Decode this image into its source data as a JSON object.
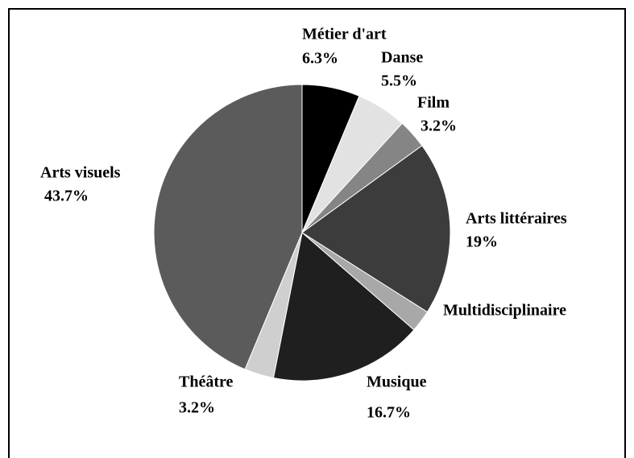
{
  "chart_data": {
    "type": "pie",
    "categories": [
      "Métier d'art",
      "Danse",
      "Film",
      "Arts littéraires",
      "Multidisciplinaire",
      "Musique",
      "Théâtre",
      "Arts visuels"
    ],
    "values": [
      6.3,
      5.5,
      3.2,
      19,
      2.4,
      16.7,
      3.2,
      43.7
    ],
    "value_labels": [
      "6.3%",
      "5.5%",
      "3.2%",
      "19%",
      null,
      "16.7%",
      "3.2%",
      "43.7%"
    ],
    "colors": [
      "#000000",
      "#e2e2e2",
      "#858585",
      "#3c3c3c",
      "#a8a8a8",
      "#1f1f1f",
      "#cfcfcf",
      "#5b5b5b"
    ]
  }
}
